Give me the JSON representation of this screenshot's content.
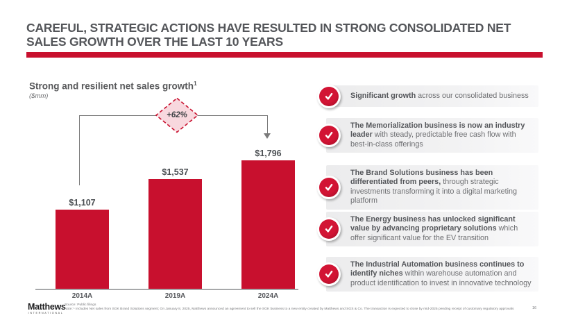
{
  "slide": {
    "title": "CAREFUL, STRATEGIC ACTIONS HAVE RESULTED IN STRONG CONSOLIDATED NET SALES GROWTH OVER THE LAST 10 YEARS",
    "page_number": "16"
  },
  "colors": {
    "brand_red": "#C8102E",
    "title_gray": "#54565A",
    "body_gray": "#6D6E71",
    "diamond_fill": "#F8D8DE",
    "bracket_gray": "#7b7b7b"
  },
  "chart": {
    "title": "Strong and resilient net sales growth",
    "title_superscript": "1",
    "unit_label": "($mm)",
    "growth_callout": "+62%"
  },
  "chart_data": {
    "type": "bar",
    "title": "Strong and resilient net sales growth¹",
    "ylabel": "($mm)",
    "categories": [
      "2014A",
      "2019A",
      "2024A"
    ],
    "values": [
      1107,
      1537,
      1796
    ],
    "labels": [
      "$1,107",
      "$1,537",
      "$1,796"
    ],
    "bar_color": "#C8102E",
    "ylim": [
      0,
      1900
    ],
    "grid": false,
    "legend": false,
    "annotation": "+62% growth from 2014A to 2024A"
  },
  "bullets": [
    {
      "bold": "Significant growth",
      "rest": " across our consolidated business"
    },
    {
      "bold": "The Memorialization business is now an industry leader",
      "rest": " with steady, predictable free cash flow with best-in-class offerings"
    },
    {
      "bold": "The Brand Solutions business has been differentiated from peers,",
      "rest": " through strategic investments transforming it into a digital marketing platform"
    },
    {
      "bold": "The Energy business has unlocked significant value by advancing proprietary solutions",
      "rest": " which offer significant value for the EV transition"
    },
    {
      "bold": "The Industrial Automation business continues to identify niches",
      "rest": " within warehouse automation and product identification to invest in innovative technology"
    }
  ],
  "footer": {
    "logo_name": "Matthews",
    "logo_subtitle": "INTERNATIONAL",
    "source": "Source: Public filings",
    "note": "Note: ¹ Includes Net sales from SGK Brand Solutions segment; On January 8, 2025, Matthews announced an agreement to sell the SGK business to a new entity created by Matthews and SGS & Co. The transaction is expected to close by mid-2025 pending receipt of customary regulatory approvals"
  }
}
